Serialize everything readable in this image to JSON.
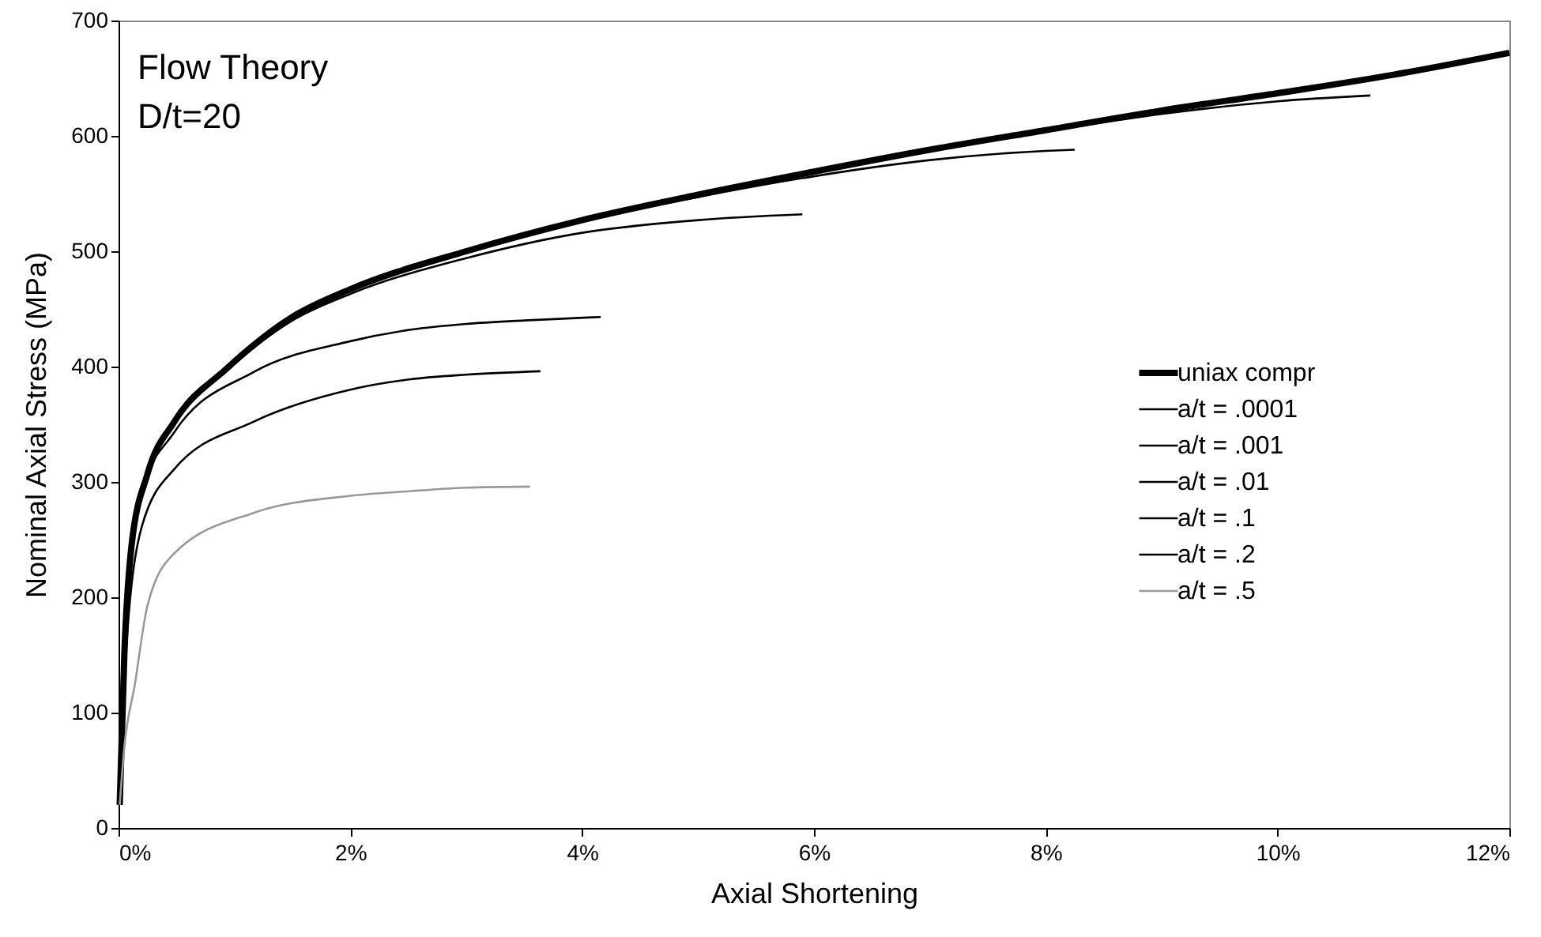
{
  "chart_data": {
    "type": "line",
    "xlabel": "Axial Shortening",
    "ylabel": "Nominal Axial Stress (MPa)",
    "annotations": [
      "Flow Theory",
      "D/t=20"
    ],
    "xlim": [
      0,
      12
    ],
    "xticks": [
      {
        "value": 0,
        "label": "0%"
      },
      {
        "value": 2,
        "label": "2%"
      },
      {
        "value": 4,
        "label": "4%"
      },
      {
        "value": 6,
        "label": "6%"
      },
      {
        "value": 8,
        "label": "8%"
      },
      {
        "value": 10,
        "label": "10%"
      },
      {
        "value": 12,
        "label": "12%"
      }
    ],
    "ylim": [
      0,
      700
    ],
    "yticks": [
      0,
      100,
      200,
      300,
      400,
      500,
      600,
      700
    ],
    "grid": false,
    "legend": "right",
    "line_style": "solid",
    "marker": "none",
    "series": [
      {
        "name": "uniax compr",
        "color": "#000000",
        "x": [
          0.01,
          0.05,
          0.11,
          0.25,
          0.48,
          0.93,
          1.5,
          2,
          3,
          4,
          5,
          6,
          7,
          8,
          9,
          10,
          11,
          12
        ],
        "values": [
          20,
          150,
          243,
          307,
          352,
          398,
          443,
          467,
          500,
          527,
          549,
          569,
          588,
          605,
          622,
          637,
          653,
          672
        ]
      },
      {
        "name": "a/t = .0001",
        "color": "#000000",
        "x": [
          0.01,
          0.05,
          0.11,
          0.25,
          0.48,
          0.93,
          1.5,
          2,
          3,
          4,
          5,
          6,
          7,
          8,
          9,
          10,
          10.8
        ],
        "values": [
          20,
          150,
          243,
          307,
          352,
          398,
          443,
          467,
          500,
          527,
          549,
          569,
          588,
          604,
          619,
          630,
          635
        ]
      },
      {
        "name": "a/t = .001",
        "color": "#000000",
        "x": [
          0.01,
          0.05,
          0.11,
          0.25,
          0.48,
          0.93,
          1.5,
          2,
          3,
          4,
          5,
          6,
          7,
          8,
          8.25
        ],
        "values": [
          20,
          150,
          243,
          307,
          352,
          398,
          443,
          467,
          500,
          526,
          547,
          565,
          579,
          587,
          588
        ]
      },
      {
        "name": "a/t = .01",
        "color": "#000000",
        "x": [
          0.01,
          0.05,
          0.11,
          0.25,
          0.48,
          0.93,
          1.5,
          2,
          3,
          4,
          5,
          5.9
        ],
        "values": [
          20,
          150,
          243,
          306,
          350,
          396,
          440,
          463,
          494,
          516,
          527,
          532
        ]
      },
      {
        "name": "a/t = .1",
        "color": "#000000",
        "x": [
          0.01,
          0.05,
          0.16,
          0.48,
          1.16,
          2,
          2.52,
          3,
          3.5,
          4.16
        ],
        "values": [
          20,
          150,
          283,
          343,
          395,
          422,
          432,
          437,
          440,
          443
        ]
      },
      {
        "name": "a/t = .2",
        "color": "#000000",
        "x": [
          0.01,
          0.05,
          0.2,
          0.48,
          1.16,
          2,
          2.52,
          3,
          3.64
        ],
        "values": [
          20,
          130,
          261,
          311,
          352,
          380,
          389,
          393,
          396
        ]
      },
      {
        "name": "a/t = .5",
        "color": "#999999",
        "x": [
          0.01,
          0.05,
          0.14,
          0.25,
          0.48,
          1.16,
          2,
          2.52,
          3,
          3.55
        ],
        "values": [
          20,
          70,
          124,
          193,
          238,
          273,
          288,
          292,
          295,
          296
        ]
      }
    ]
  }
}
